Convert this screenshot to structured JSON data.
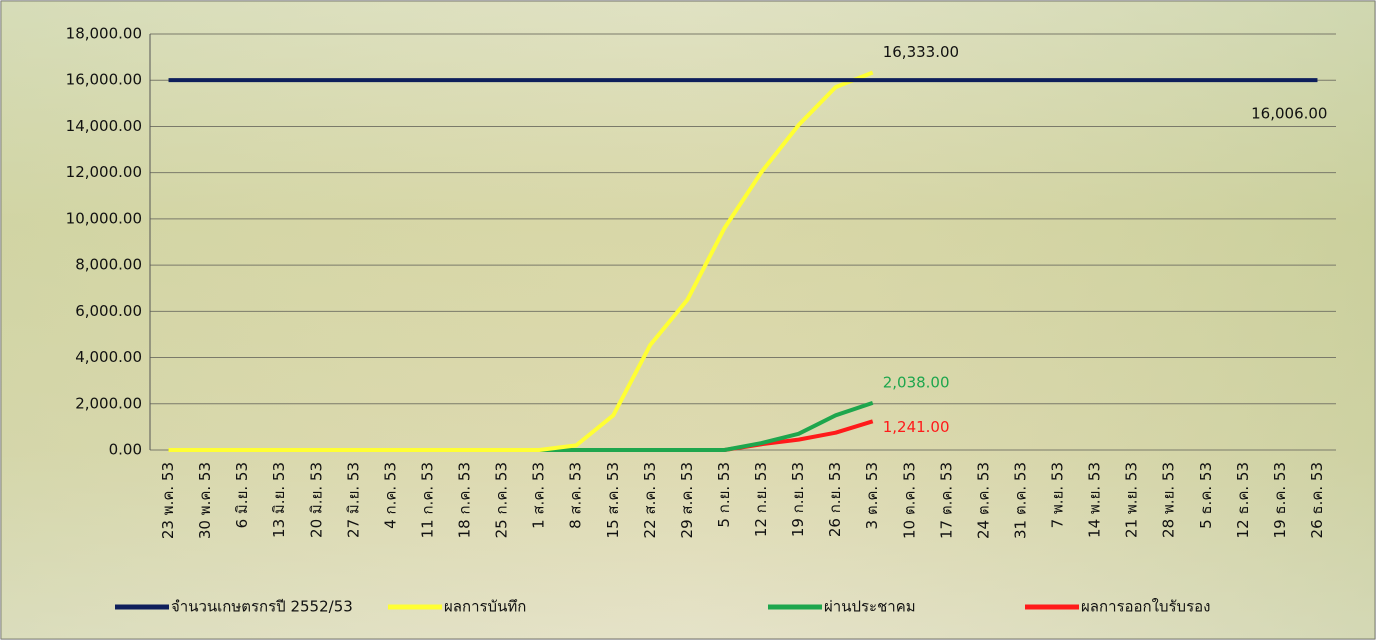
{
  "chart_data": {
    "type": "line",
    "categories": [
      "23 พ.ค. 53",
      "30 พ.ค. 53",
      "6 มิ.ย. 53",
      "13 มิ.ย. 53",
      "20 มิ.ย. 53",
      "27 มิ.ย. 53",
      "4 ก.ค. 53",
      "11 ก.ค. 53",
      "18 ก.ค. 53",
      "25 ก.ค. 53",
      "1 ส.ค. 53",
      "8 ส.ค. 53",
      "15 ส.ค. 53",
      "22 ส.ค. 53",
      "29 ส.ค. 53",
      "5 ก.ย. 53",
      "12 ก.ย. 53",
      "19 ก.ย. 53",
      "26 ก.ย. 53",
      "3 ต.ค. 53",
      "10 ต.ค. 53",
      "17 ต.ค. 53",
      "24 ต.ค. 53",
      "31 ต.ค. 53",
      "7 พ.ย. 53",
      "14 พ.ย. 53",
      "21 พ.ย. 53",
      "28 พ.ย. 53",
      "5 ธ.ค. 53",
      "12 ธ.ค. 53",
      "19 ธ.ค. 53",
      "26 ธ.ค. 53"
    ],
    "series": [
      {
        "name": "จำนวนเกษตรกรปี  2552/53",
        "color": "#0e1f5b",
        "label_color": "#111111",
        "values": [
          16006,
          16006,
          16006,
          16006,
          16006,
          16006,
          16006,
          16006,
          16006,
          16006,
          16006,
          16006,
          16006,
          16006,
          16006,
          16006,
          16006,
          16006,
          16006,
          16006,
          16006,
          16006,
          16006,
          16006,
          16006,
          16006,
          16006,
          16006,
          16006,
          16006,
          16006,
          16006
        ],
        "value_labels": [
          null,
          null,
          null,
          null,
          null,
          null,
          null,
          null,
          null,
          null,
          null,
          null,
          null,
          null,
          null,
          null,
          null,
          null,
          null,
          null,
          null,
          null,
          null,
          null,
          null,
          null,
          null,
          null,
          null,
          null,
          null,
          "16,006.00"
        ]
      },
      {
        "name": "ผลการบันทึก",
        "color": "#ffff33",
        "label_color": "#111111",
        "values": [
          0,
          0,
          0,
          0,
          0,
          0,
          0,
          0,
          0,
          0,
          0,
          200,
          1500,
          4550,
          6500,
          9600,
          12030,
          14060,
          15700,
          16333,
          null,
          null,
          null,
          null,
          null,
          null,
          null,
          null,
          null,
          null,
          null,
          null
        ],
        "value_labels": [
          null,
          null,
          null,
          null,
          null,
          null,
          null,
          null,
          null,
          null,
          null,
          null,
          null,
          null,
          null,
          null,
          null,
          null,
          null,
          "16,333.00",
          null,
          null,
          null,
          null,
          null,
          null,
          null,
          null,
          null,
          null,
          null,
          null
        ]
      },
      {
        "name": "ผ่านประชาคม",
        "color": "#1ea64d",
        "label_color": "#1ea64d",
        "values": [
          0,
          0,
          0,
          0,
          0,
          0,
          0,
          0,
          0,
          0,
          0,
          0,
          0,
          0,
          0,
          0,
          300,
          700,
          1500,
          2038,
          null,
          null,
          null,
          null,
          null,
          null,
          null,
          null,
          null,
          null,
          null,
          null
        ],
        "value_labels": [
          null,
          null,
          null,
          null,
          null,
          null,
          null,
          null,
          null,
          null,
          null,
          null,
          null,
          null,
          null,
          null,
          null,
          null,
          null,
          "2,038.00",
          null,
          null,
          null,
          null,
          null,
          null,
          null,
          null,
          null,
          null,
          null,
          null
        ]
      },
      {
        "name": "ผลการออกใบรับรอง",
        "color": "#ff1a1a",
        "label_color": "#ff1a1a",
        "values": [
          0,
          0,
          0,
          0,
          0,
          0,
          0,
          0,
          0,
          0,
          0,
          0,
          0,
          0,
          0,
          0,
          250,
          450,
          750,
          1241,
          null,
          null,
          null,
          null,
          null,
          null,
          null,
          null,
          null,
          null,
          null,
          null
        ],
        "value_labels": [
          null,
          null,
          null,
          null,
          null,
          null,
          null,
          null,
          null,
          null,
          null,
          null,
          null,
          null,
          null,
          null,
          null,
          null,
          null,
          "1,241.00",
          null,
          null,
          null,
          null,
          null,
          null,
          null,
          null,
          null,
          null,
          null,
          null
        ]
      }
    ],
    "ylim": [
      0,
      18000
    ],
    "yticks": [
      {
        "value": 0,
        "label": "0.00"
      },
      {
        "value": 2000,
        "label": "2,000.00"
      },
      {
        "value": 4000,
        "label": "4,000.00"
      },
      {
        "value": 6000,
        "label": "6,000.00"
      },
      {
        "value": 8000,
        "label": "8,000.00"
      },
      {
        "value": 10000,
        "label": "10,000.00"
      },
      {
        "value": 12000,
        "label": "12,000.00"
      },
      {
        "value": 14000,
        "label": "14,000.00"
      },
      {
        "value": 16000,
        "label": "16,000.00"
      },
      {
        "value": 18000,
        "label": "18,000.00"
      }
    ],
    "grid": true,
    "legend": "bottom"
  }
}
